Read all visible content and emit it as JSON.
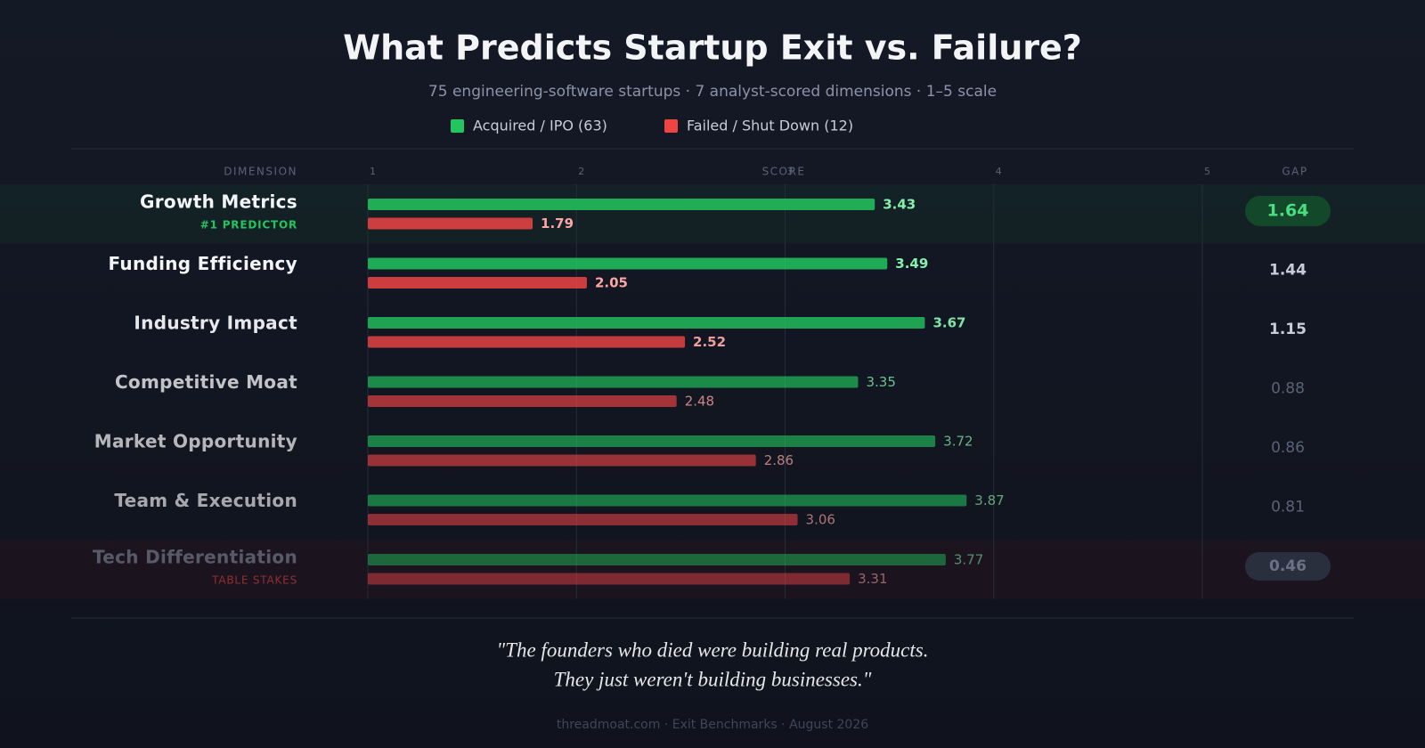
{
  "chart_data": {
    "type": "bar",
    "orientation": "horizontal",
    "title": "What Predicts Startup Exit vs. Failure?",
    "subtitle": "75 engineering-software startups · 7 analyst-scored dimensions · 1–5 scale",
    "category_label": "DIMENSION",
    "x_label": "SCORE",
    "gap_label": "GAP",
    "categories": [
      "Growth Metrics",
      "Funding Efficiency",
      "Industry Impact",
      "Competitive Moat",
      "Market Opportunity",
      "Team & Execution",
      "Tech Differentiation"
    ],
    "category_notes": [
      "#1 PREDICTOR",
      null,
      null,
      null,
      null,
      null,
      "TABLE STAKES"
    ],
    "series": [
      {
        "name": "Acquired / IPO (63)",
        "color": "#22c55e",
        "values": [
          3.43,
          3.49,
          3.67,
          3.35,
          3.72,
          3.87,
          3.77
        ]
      },
      {
        "name": "Failed / Shut Down (12)",
        "color": "#ef4444",
        "values": [
          1.79,
          2.05,
          2.52,
          2.48,
          2.86,
          3.06,
          3.31
        ]
      }
    ],
    "gaps": [
      1.64,
      1.44,
      1.15,
      0.88,
      0.86,
      0.81,
      0.46
    ],
    "xlim": [
      1,
      5
    ],
    "xticks": [
      1,
      2,
      3,
      4,
      5
    ],
    "grid": true,
    "quote": [
      "\"The founders who died were building real products.",
      "They just weren't building businesses.\""
    ],
    "footer": "threadmoat.com · Exit Benchmarks · August 2026"
  }
}
